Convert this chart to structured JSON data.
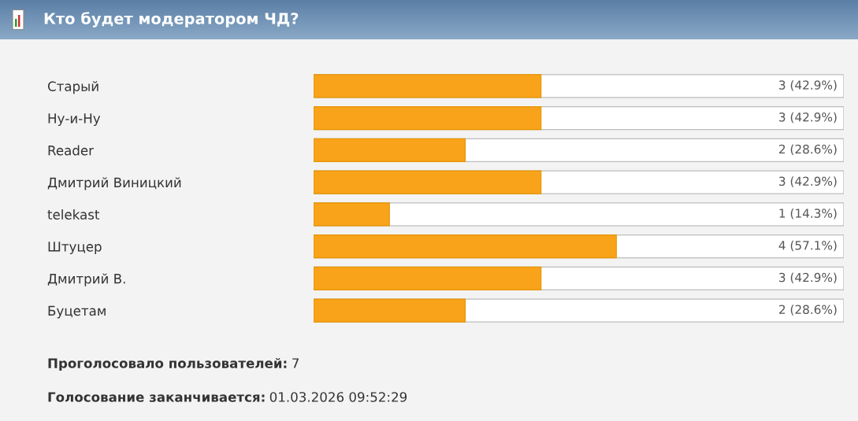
{
  "chart_data": {
    "type": "bar",
    "orientation": "horizontal",
    "title": "Кто будет модератором ЧД?",
    "categories": [
      "Старый",
      "Ну-и-Ну",
      "Reader",
      "Дмитрий Виницкий",
      "telekast",
      "Штуцер",
      "Дмитрий В.",
      "Буцетам"
    ],
    "values": [
      42.9,
      42.9,
      28.6,
      42.9,
      14.3,
      57.1,
      42.9,
      28.6
    ],
    "value_labels": [
      "3 (42.9%)",
      "3 (42.9%)",
      "2 (28.6%)",
      "3 (42.9%)",
      "1 (14.3%)",
      "4 (57.1%)",
      "3 (42.9%)",
      "2 (28.6%)"
    ],
    "color": "#f9a31a",
    "xlim": [
      0,
      100
    ],
    "tick_labels": "y",
    "grid": false,
    "legend": false,
    "annotations": [
      "Проголосовало пользователей: 7",
      "Голосование заканчивается: 01.03.2026 09:52:29"
    ]
  }
}
